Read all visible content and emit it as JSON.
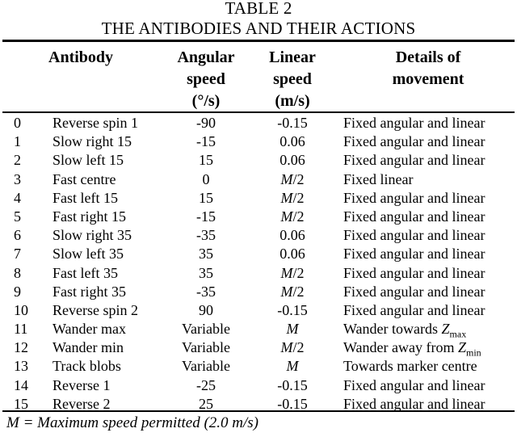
{
  "table": {
    "title_line1": "TABLE 2",
    "title_line2": "THE ANTIBODIES AND THEIR ACTIONS",
    "headers": {
      "antibody": "Antibody",
      "angular": [
        "Angular",
        "speed",
        "(°/s)"
      ],
      "linear": [
        "Linear",
        "speed",
        "(m/s)"
      ],
      "details": [
        "Details of",
        "movement"
      ]
    },
    "rows": [
      {
        "index": "0",
        "antibody": "Reverse spin 1",
        "angular": "-90",
        "linear": "-0.15",
        "details": "Fixed angular and linear"
      },
      {
        "index": "1",
        "antibody": "Slow right 15",
        "angular": "-15",
        "linear": "0.06",
        "details": "Fixed angular and linear"
      },
      {
        "index": "2",
        "antibody": "Slow left 15",
        "angular": "15",
        "linear": "0.06",
        "details": "Fixed angular and linear"
      },
      {
        "index": "3",
        "antibody": "Fast centre",
        "angular": "0",
        "linear": "M/2",
        "details": "Fixed linear"
      },
      {
        "index": "4",
        "antibody": "Fast left 15",
        "angular": "15",
        "linear": "M/2",
        "details": "Fixed angular and linear"
      },
      {
        "index": "5",
        "antibody": "Fast right 15",
        "angular": "-15",
        "linear": "M/2",
        "details": "Fixed angular and linear"
      },
      {
        "index": "6",
        "antibody": "Slow right 35",
        "angular": "-35",
        "linear": "0.06",
        "details": "Fixed angular and linear"
      },
      {
        "index": "7",
        "antibody": "Slow left 35",
        "angular": "35",
        "linear": "0.06",
        "details": "Fixed angular and linear"
      },
      {
        "index": "8",
        "antibody": "Fast left 35",
        "angular": "35",
        "linear": "M/2",
        "details": "Fixed angular and linear"
      },
      {
        "index": "9",
        "antibody": "Fast right 35",
        "angular": "-35",
        "linear": "M/2",
        "details": "Fixed angular and linear"
      },
      {
        "index": "10",
        "antibody": "Reverse spin 2",
        "angular": "90",
        "linear": "-0.15",
        "details": "Fixed angular and linear"
      },
      {
        "index": "11",
        "antibody": "Wander max",
        "angular": "Variable",
        "linear": "M",
        "details": "Wander towards Zmax"
      },
      {
        "index": "12",
        "antibody": "Wander min",
        "angular": "Variable",
        "linear": "M/2",
        "details": "Wander away from Zmin"
      },
      {
        "index": "13",
        "antibody": "Track blobs",
        "angular": "Variable",
        "linear": "M",
        "details": "Towards marker centre"
      },
      {
        "index": "14",
        "antibody": "Reverse 1",
        "angular": "-25",
        "linear": "-0.15",
        "details": "Fixed angular and linear"
      },
      {
        "index": "15",
        "antibody": "Reverse 2",
        "angular": "25",
        "linear": "-0.15",
        "details": "Fixed angular and linear"
      }
    ],
    "footnote": "M = Maximum speed permitted (2.0 m/s)"
  }
}
